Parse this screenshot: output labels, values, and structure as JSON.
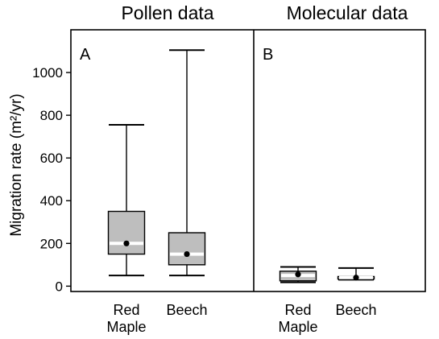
{
  "chart_data": {
    "type": "boxplot",
    "ylabel": "Migration rate (m²/yr)",
    "ylim": [
      -25,
      1200
    ],
    "yticks": [
      0,
      200,
      400,
      600,
      800,
      1000
    ],
    "panels": [
      {
        "title": "Pollen data",
        "panel_label": "A",
        "categories": [
          "Red\nMaple",
          "Beech"
        ],
        "boxes": [
          {
            "whisker_low": 50,
            "q1": 150,
            "median": 200,
            "q3": 350,
            "whisker_high": 755,
            "mean": 200
          },
          {
            "whisker_low": 50,
            "q1": 100,
            "median": 150,
            "q3": 250,
            "whisker_high": 1105,
            "mean": 150
          }
        ]
      },
      {
        "title": "Molecular data",
        "panel_label": "B",
        "categories": [
          "Red\nMaple",
          "Beech"
        ],
        "boxes": [
          {
            "whisker_low": 18,
            "q1": 25,
            "median": 50,
            "q3": 70,
            "whisker_high": 90,
            "mean": 55
          },
          {
            "whisker_low": 30,
            "q1": 33,
            "median": 40,
            "q3": 45,
            "whisker_high": 85,
            "mean": 40
          }
        ]
      }
    ]
  },
  "style": {
    "box_fill": "#bebebe",
    "median_color": "#ffffff",
    "frame_color": "#000000"
  }
}
